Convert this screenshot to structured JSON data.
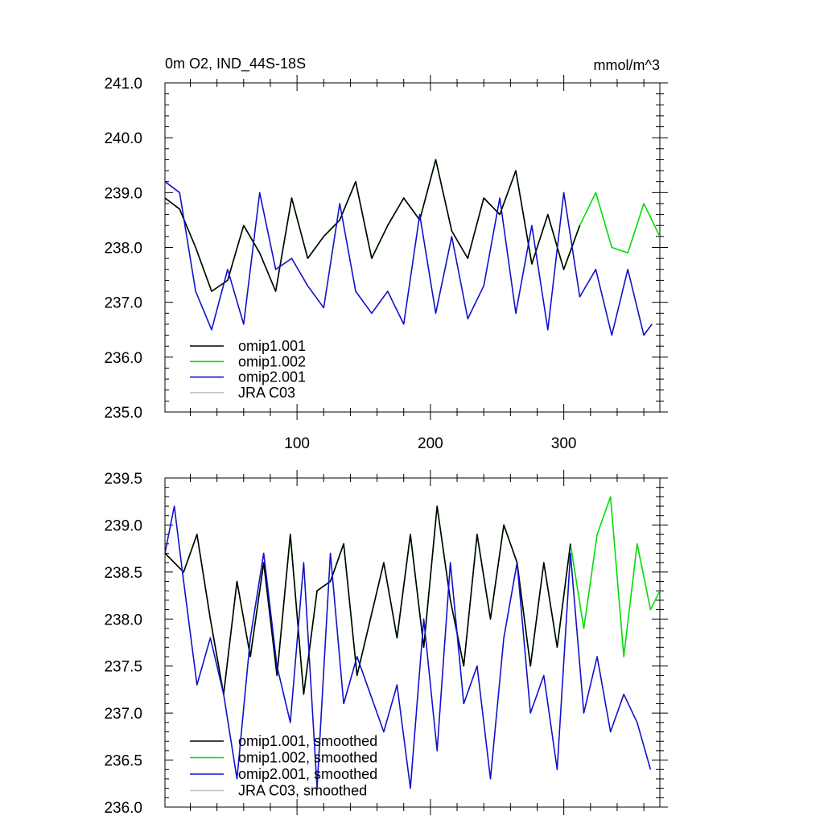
{
  "chart_data": [
    {
      "type": "line",
      "title": "0m O2, IND_44S-18S",
      "units": "mmol/m^3",
      "x_range": [
        1,
        372
      ],
      "ylim": [
        235.0,
        241.0
      ],
      "x_ticks": [
        100,
        200,
        300
      ],
      "x_tick_labels": [
        "100",
        "200",
        "300"
      ],
      "y_ticks": [
        235.0,
        236.0,
        237.0,
        238.0,
        239.0,
        240.0,
        241.0
      ],
      "y_tick_labels": [
        "235.0",
        "236.0",
        "237.0",
        "238.0",
        "239.0",
        "240.0",
        "241.0"
      ],
      "legend_position": "bottom-left",
      "series": [
        {
          "name": "omip1.001",
          "color": "#000000",
          "x": [
            1,
            12,
            24,
            36,
            48,
            60,
            72,
            84,
            96,
            108,
            120,
            132,
            144,
            156,
            168,
            180,
            192,
            204,
            216,
            228,
            240,
            252,
            264,
            276,
            288,
            300,
            312
          ],
          "values": [
            238.9,
            238.7,
            238.0,
            237.2,
            237.4,
            238.4,
            237.9,
            237.2,
            238.9,
            237.8,
            238.2,
            238.5,
            239.2,
            237.8,
            238.4,
            238.9,
            238.5,
            239.6,
            238.3,
            237.8,
            238.9,
            238.6,
            239.4,
            237.7,
            238.6,
            237.6,
            238.4
          ]
        },
        {
          "name": "omip1.002",
          "color": "#00dd00",
          "x": [
            1,
            12,
            24,
            36,
            48,
            60,
            72,
            84,
            96,
            108,
            120,
            132,
            144,
            156,
            168,
            180,
            192,
            204,
            216,
            228,
            240,
            252,
            264,
            276,
            288,
            300,
            312,
            324,
            336,
            348,
            360,
            372
          ],
          "values": [
            238.9,
            238.7,
            238.0,
            237.2,
            237.4,
            238.4,
            237.9,
            237.2,
            238.9,
            237.8,
            238.2,
            238.5,
            239.2,
            237.8,
            238.4,
            238.9,
            238.5,
            239.6,
            238.3,
            237.8,
            238.9,
            238.6,
            239.4,
            237.7,
            238.6,
            237.6,
            238.4,
            239.0,
            238.0,
            237.9,
            238.8,
            238.2
          ]
        },
        {
          "name": "omip2.001",
          "color": "#1010cc",
          "x": [
            1,
            12,
            24,
            36,
            48,
            60,
            72,
            84,
            96,
            108,
            120,
            132,
            144,
            156,
            168,
            180,
            192,
            204,
            216,
            228,
            240,
            252,
            264,
            276,
            288,
            300,
            312,
            324,
            336,
            348,
            360,
            366
          ],
          "values": [
            239.2,
            239.0,
            237.2,
            236.5,
            237.6,
            236.6,
            239.0,
            237.6,
            237.8,
            237.3,
            236.9,
            238.8,
            237.2,
            236.8,
            237.2,
            236.6,
            238.6,
            236.8,
            238.2,
            236.7,
            237.3,
            238.9,
            236.8,
            238.4,
            236.5,
            239.0,
            237.1,
            237.6,
            236.4,
            237.6,
            236.4,
            236.6
          ]
        },
        {
          "name": "JRA C03",
          "color": "#c0c0c0",
          "x": [],
          "values": []
        }
      ]
    },
    {
      "type": "line",
      "title": "",
      "units": "",
      "x_range": [
        1,
        372
      ],
      "ylim": [
        236.0,
        239.5
      ],
      "x_ticks": [
        100,
        200,
        300
      ],
      "x_tick_labels": [],
      "y_ticks": [
        236.0,
        236.5,
        237.0,
        237.5,
        238.0,
        238.5,
        239.0,
        239.5
      ],
      "y_tick_labels": [
        "236.0",
        "236.5",
        "237.0",
        "237.5",
        "238.0",
        "238.5",
        "239.0",
        "239.5"
      ],
      "legend_position": "bottom-left",
      "series": [
        {
          "name": "omip1.001, smoothed",
          "color": "#000000",
          "x": [
            1,
            15,
            25,
            35,
            45,
            55,
            65,
            75,
            85,
            95,
            105,
            115,
            125,
            135,
            145,
            155,
            165,
            175,
            185,
            195,
            205,
            215,
            225,
            235,
            245,
            255,
            265,
            275,
            285,
            295,
            305
          ],
          "values": [
            238.7,
            238.5,
            238.9,
            238.0,
            237.2,
            238.4,
            237.6,
            238.6,
            237.4,
            238.9,
            237.2,
            238.3,
            238.4,
            238.8,
            237.4,
            238.0,
            238.6,
            237.8,
            238.9,
            237.7,
            239.2,
            238.2,
            237.5,
            238.9,
            238.0,
            239.0,
            238.6,
            237.5,
            238.6,
            237.7,
            238.8
          ]
        },
        {
          "name": "omip1.002, smoothed",
          "color": "#00dd00",
          "x": [
            1,
            15,
            25,
            35,
            45,
            55,
            65,
            75,
            85,
            95,
            105,
            115,
            125,
            135,
            145,
            155,
            165,
            175,
            185,
            195,
            205,
            215,
            225,
            235,
            245,
            255,
            265,
            275,
            285,
            295,
            305,
            315,
            325,
            335,
            345,
            355,
            365,
            372
          ],
          "values": [
            238.7,
            238.5,
            238.9,
            238.0,
            237.2,
            238.4,
            237.6,
            238.6,
            237.4,
            238.9,
            237.2,
            238.3,
            238.4,
            238.8,
            237.4,
            238.0,
            238.6,
            237.8,
            238.9,
            237.7,
            239.2,
            238.2,
            237.5,
            238.9,
            238.0,
            239.0,
            238.6,
            237.5,
            238.6,
            237.7,
            238.8,
            237.9,
            238.9,
            239.3,
            237.6,
            238.8,
            238.1,
            238.3
          ]
        },
        {
          "name": "omip2.001, smoothed",
          "color": "#1010cc",
          "x": [
            1,
            8,
            15,
            25,
            35,
            45,
            55,
            65,
            75,
            85,
            95,
            105,
            115,
            125,
            135,
            145,
            155,
            165,
            175,
            185,
            195,
            205,
            215,
            225,
            235,
            245,
            255,
            265,
            275,
            285,
            295,
            305,
            315,
            325,
            335,
            345,
            355,
            365
          ],
          "values": [
            238.7,
            239.2,
            238.4,
            237.3,
            237.8,
            237.2,
            236.3,
            237.8,
            238.7,
            237.5,
            236.9,
            238.6,
            236.2,
            238.7,
            237.1,
            237.6,
            237.2,
            236.8,
            237.3,
            236.2,
            238.0,
            236.6,
            238.6,
            237.1,
            237.5,
            236.3,
            237.8,
            238.6,
            237.0,
            237.4,
            236.4,
            238.7,
            237.0,
            237.6,
            236.8,
            237.2,
            236.9,
            236.4
          ]
        },
        {
          "name": "JRA C03, smoothed",
          "color": "#c0c0c0",
          "x": [],
          "values": []
        }
      ]
    }
  ]
}
